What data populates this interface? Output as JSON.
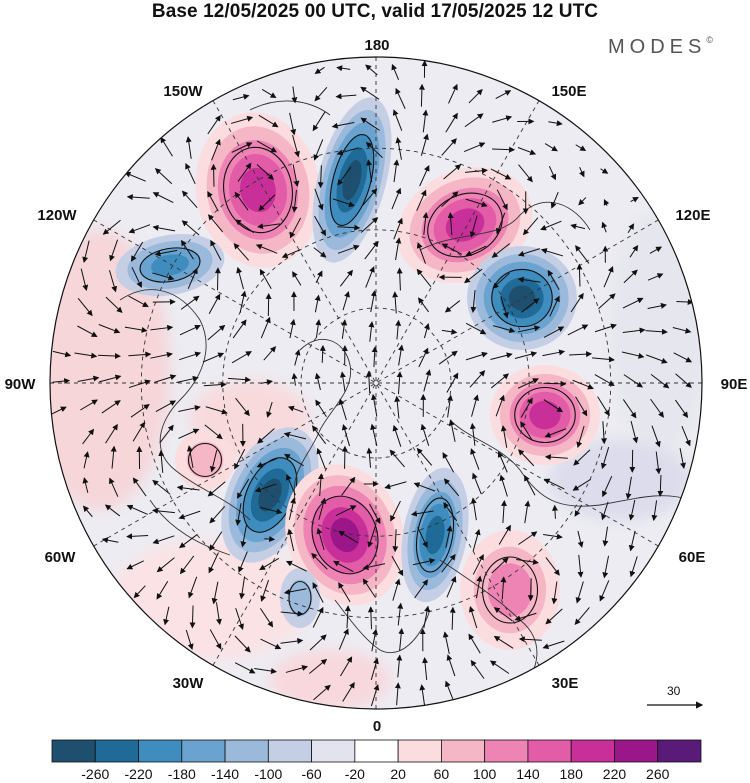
{
  "title": "Base 12/05/2025 00 UTC, valid 17/05/2025 12 UTC",
  "brand": "MODES",
  "brand_mark": "©",
  "longitude_labels": {
    "top": "180",
    "top_left": "150W",
    "top_right": "150E",
    "upper_left": "120W",
    "upper_right": "120E",
    "left": "90W",
    "right": "90E",
    "lower_left": "60W",
    "lower_right": "60E",
    "bottom_left": "30W",
    "bottom_right": "30E",
    "bottom": "0"
  },
  "reference_vector": {
    "value": "30"
  },
  "colorbar": {
    "ticks": [
      "-260",
      "-220",
      "-180",
      "-140",
      "-100",
      "-60",
      "-20",
      "20",
      "60",
      "100",
      "140",
      "180",
      "220",
      "260"
    ],
    "colors": [
      "#1e4f6e",
      "#1f6a96",
      "#3f8dbf",
      "#6aa3cf",
      "#9bbadb",
      "#c4cfe6",
      "#e3e3f0",
      "#ffffff",
      "#fbdde0",
      "#f5b6c6",
      "#ee84b4",
      "#e25ca8",
      "#c92f99",
      "#9b1689",
      "#5a1a78"
    ]
  },
  "anomaly_centers": [
    {
      "label": "positive",
      "value": 220,
      "color": "#c92f99"
    },
    {
      "label": "negative",
      "value": -220,
      "color": "#1e4f6e"
    }
  ]
}
